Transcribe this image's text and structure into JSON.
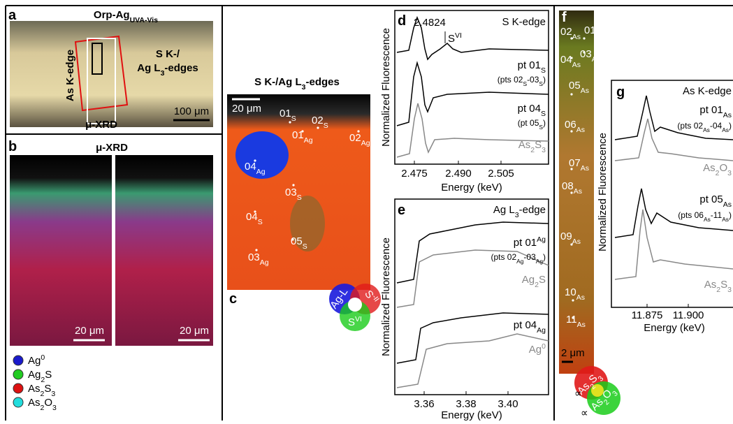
{
  "panel_a": {
    "label": "a",
    "title": [
      {
        "text": "Orp-Ag"
      },
      {
        "sub": "UVA-Vis"
      }
    ],
    "as_edge": "As K-edge",
    "s_edge_1": "S K-/",
    "s_edge_2": [
      {
        "text": "Ag L"
      },
      {
        "sub": "3"
      },
      {
        "text": "-edges"
      }
    ],
    "xrd": "μ-XRD",
    "scale": "100 μm"
  },
  "panel_b": {
    "label": "b",
    "title": "μ-XRD",
    "scale_left": "20 μm",
    "scale_right": "20 μm",
    "legend": [
      {
        "name": [
          {
            "text": "Ag"
          },
          {
            "sup": "0"
          }
        ],
        "color": "#1a1acc"
      },
      {
        "name": [
          {
            "text": "Ag"
          },
          {
            "sub": "2"
          },
          {
            "text": "S"
          }
        ],
        "color": "#22cc22"
      },
      {
        "name": [
          {
            "text": "As"
          },
          {
            "sub": "2"
          },
          {
            "text": "S"
          },
          {
            "sub": "3"
          }
        ],
        "color": "#dd1111"
      },
      {
        "name": [
          {
            "text": "As"
          },
          {
            "sub": "2"
          },
          {
            "text": "O"
          },
          {
            "sub": "3"
          }
        ],
        "color": "#22dddd"
      }
    ]
  },
  "panel_c": {
    "label": "c",
    "title": [
      {
        "text": "S K-/Ag L"
      },
      {
        "sub": "3"
      },
      {
        "text": "-edges"
      }
    ],
    "scale": "20 μm",
    "points": [
      [
        {
          "text": "01"
        },
        {
          "sub": "S"
        }
      ],
      [
        {
          "text": "02"
        },
        {
          "sub": "S"
        }
      ],
      [
        {
          "text": "01"
        },
        {
          "sub": "Ag"
        }
      ],
      [
        {
          "text": "02"
        },
        {
          "sub": "Ag"
        }
      ],
      [
        {
          "text": "04"
        },
        {
          "sub": "Ag"
        }
      ],
      [
        {
          "text": "03"
        },
        {
          "sub": "S"
        }
      ],
      [
        {
          "text": "04"
        },
        {
          "sub": "S"
        }
      ],
      [
        {
          "text": "05"
        },
        {
          "sub": "S"
        }
      ],
      [
        {
          "text": "03"
        },
        {
          "sub": "Ag"
        }
      ]
    ],
    "wheel": [
      [
        {
          "text": "Ag-L"
        }
      ],
      [
        {
          "text": "S"
        },
        {
          "sup": "-II"
        }
      ],
      [
        {
          "text": "S"
        },
        {
          "sup": "VI"
        }
      ]
    ]
  },
  "panel_d": {
    "label": "d",
    "title": "S K-edge",
    "peak": "2.4824",
    "peak_label": [
      {
        "text": "S"
      },
      {
        "sup": "VI"
      }
    ],
    "spectra": [
      [
        {
          "text": "pt 01"
        },
        {
          "sub": "S"
        }
      ],
      [
        {
          "text": "(pts 02"
        },
        {
          "sub": "S"
        },
        {
          "text": "-03"
        },
        {
          "sub": "S"
        },
        {
          "text": ")"
        }
      ],
      [
        {
          "text": "pt 04"
        },
        {
          "sub": "S"
        }
      ],
      [
        {
          "text": "(pt 05"
        },
        {
          "sub": "S"
        },
        {
          "text": ")"
        }
      ],
      [
        {
          "text": "As"
        },
        {
          "sub": "2"
        },
        {
          "text": "S"
        },
        {
          "sub": "3"
        }
      ]
    ],
    "xticks": [
      "2.475",
      "2.490",
      "2.505"
    ],
    "xlabel": "Energy (keV)",
    "ylabel": "Normalized Fluorescence"
  },
  "panel_e": {
    "label": "e",
    "title": [
      {
        "text": "Ag L"
      },
      {
        "sub": "3"
      },
      {
        "text": "-edge"
      }
    ],
    "spectra": [
      [
        {
          "text": "pt 01"
        },
        {
          "sup": "Ag"
        }
      ],
      [
        {
          "text": "(pts 02"
        },
        {
          "sub": "Ag"
        },
        {
          "text": "-03"
        },
        {
          "sub": "Ag"
        },
        {
          "text": ")"
        }
      ],
      [
        {
          "text": "Ag"
        },
        {
          "sub": "2"
        },
        {
          "text": "S"
        }
      ],
      [
        {
          "text": "pt 04"
        },
        {
          "sub": "Ag"
        }
      ],
      [
        {
          "text": "Ag"
        },
        {
          "sup": "0"
        }
      ]
    ],
    "xticks": [
      "3.36",
      "3.38",
      "3.40"
    ],
    "xlabel": "Energy (keV)",
    "ylabel": "Normalized Fluorescence"
  },
  "panel_f": {
    "label": "f",
    "scale": "2 μm",
    "points": [
      [
        {
          "text": "02"
        },
        {
          "sub": "As"
        }
      ],
      [
        {
          "text": "01"
        },
        {
          "sub": "As"
        }
      ],
      [
        {
          "text": "04"
        },
        {
          "sub": "As"
        }
      ],
      [
        {
          "text": "03"
        },
        {
          "sub": "As"
        }
      ],
      [
        {
          "text": "05"
        },
        {
          "sub": "As"
        }
      ],
      [
        {
          "text": "06"
        },
        {
          "sub": "As"
        }
      ],
      [
        {
          "text": "07"
        },
        {
          "sub": "As"
        }
      ],
      [
        {
          "text": "08"
        },
        {
          "sub": "As"
        }
      ],
      [
        {
          "text": "09"
        },
        {
          "sub": "As"
        }
      ],
      [
        {
          "text": "10"
        },
        {
          "sub": "As"
        }
      ],
      [
        {
          "text": "11"
        },
        {
          "sub": "As"
        }
      ]
    ],
    "wheel": [
      [
        {
          "text": "As"
        },
        {
          "sub": "2"
        },
        {
          "text": "S"
        },
        {
          "sub": "3"
        }
      ],
      [
        {
          "text": "As"
        },
        {
          "sub": "2"
        },
        {
          "text": "O"
        },
        {
          "sub": "3"
        }
      ]
    ],
    "prop": "∝"
  },
  "panel_g": {
    "label": "g",
    "title": "As K-edge",
    "spectra": [
      [
        {
          "text": "pt 01"
        },
        {
          "sub": "As"
        }
      ],
      [
        {
          "text": "(pts 02"
        },
        {
          "sub": "As"
        },
        {
          "text": "-04"
        },
        {
          "sub": "As"
        },
        {
          "text": ")"
        }
      ],
      [
        {
          "text": "As"
        },
        {
          "sub": "2"
        },
        {
          "text": "O"
        },
        {
          "sub": "3"
        }
      ],
      [
        {
          "text": "pt 05"
        },
        {
          "sub": "As"
        }
      ],
      [
        {
          "text": "(pts 06"
        },
        {
          "sub": "As"
        },
        {
          "text": "-11"
        },
        {
          "sub": "As"
        },
        {
          "text": ")"
        }
      ],
      [
        {
          "text": "As"
        },
        {
          "sub": "2"
        },
        {
          "text": "S"
        },
        {
          "sub": "3"
        }
      ]
    ],
    "xticks": [
      "11.875",
      "11.900"
    ],
    "xlabel": "Energy (keV)",
    "ylabel": "Normalized Fluorescence"
  }
}
